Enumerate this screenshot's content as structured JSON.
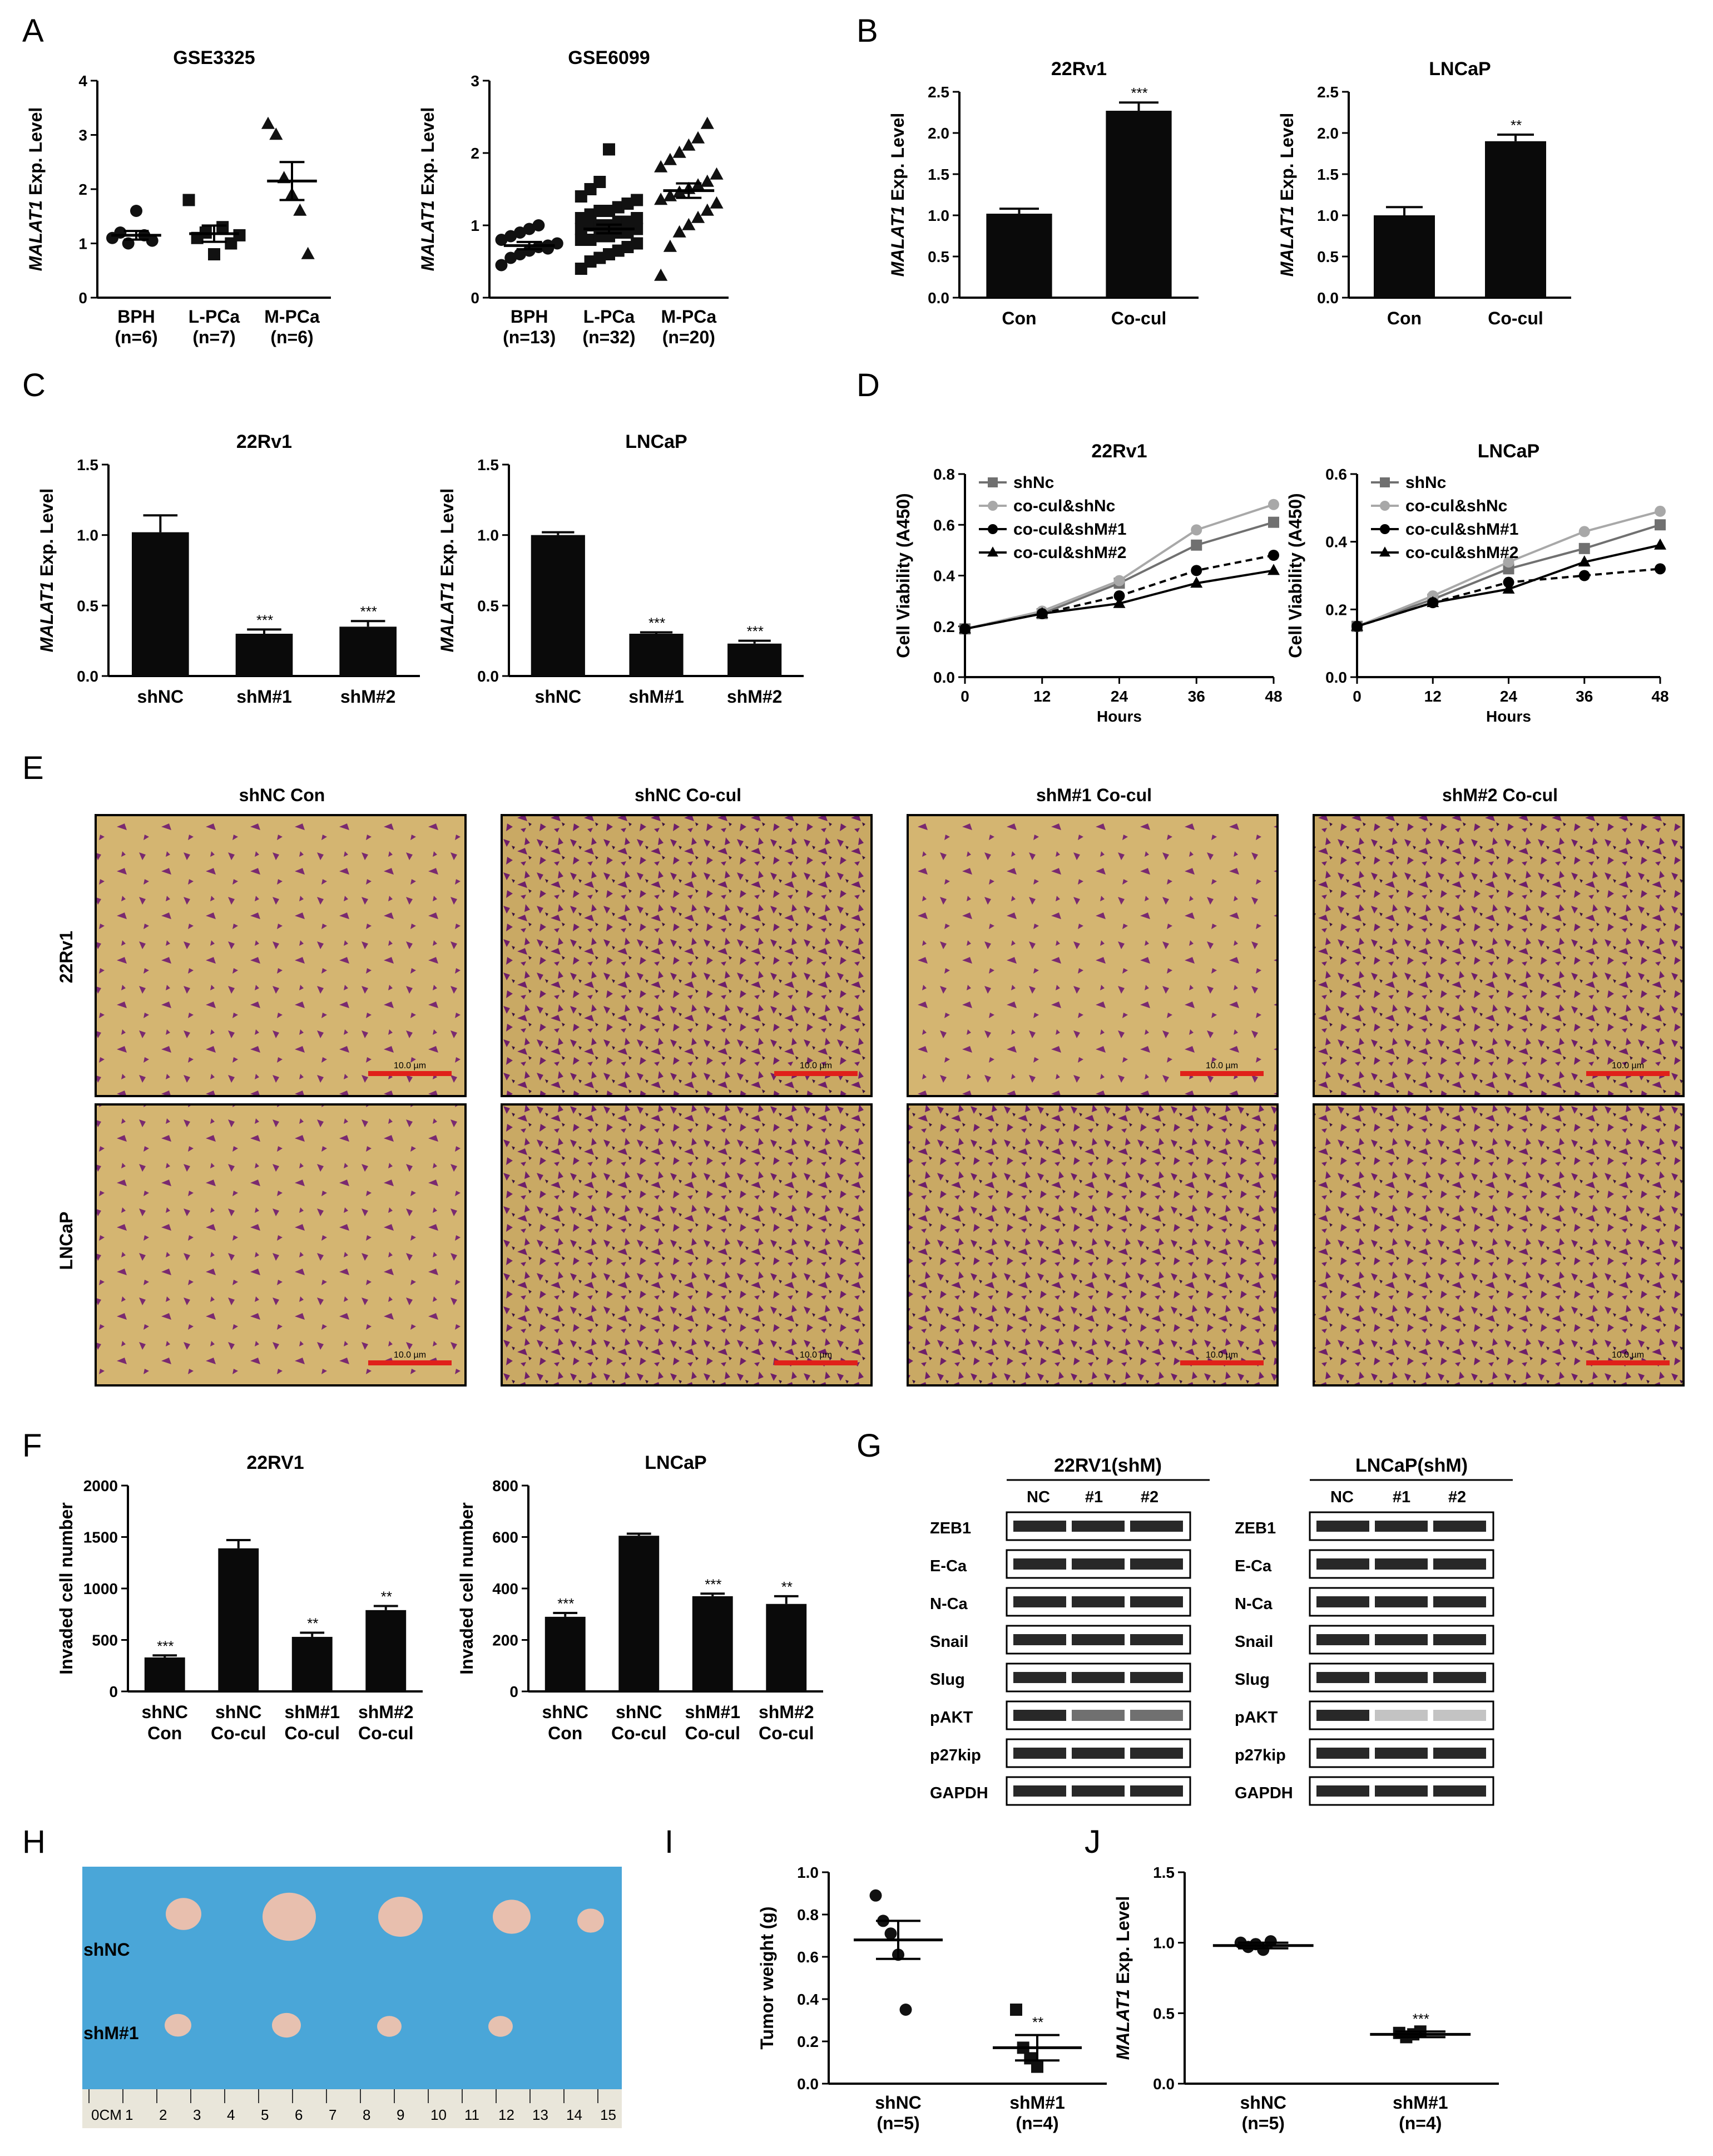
{
  "panel_letters": {
    "A": "A",
    "B": "B",
    "C": "C",
    "D": "D",
    "E": "E",
    "F": "F",
    "G": "G",
    "H": "H",
    "I": "I",
    "J": "J"
  },
  "ylabels": {
    "malat1": "MALAT1",
    "exp_level": " Exp. Level",
    "viability": "Cell Viability (A450)",
    "invaded": "Invaded cell number",
    "tumor_weight": "Tumor weight (g)",
    "hours": "Hours"
  },
  "colors": {
    "bar": "#0a0a0a",
    "gray_dark": "#707070",
    "gray_light": "#a8a8a8",
    "scale_bar": "#e0201a",
    "micro_bg": "#cfb06b",
    "micro_stain": "#6e1f6a",
    "photo_bg": "#4aa6d8"
  },
  "chart_data": [
    {
      "id": "A1",
      "type": "scatter",
      "title": "GSE3325",
      "ylim": [
        0,
        4
      ],
      "yticks": [
        "0",
        "1",
        "2",
        "3",
        "4"
      ],
      "categories": [
        "BPH",
        "L-PCa",
        "M-PCa"
      ],
      "cat_n": [
        "(n=6)",
        "(n=7)",
        "(n=6)"
      ],
      "groups": [
        {
          "marker": "circle",
          "mean": 1.15,
          "sem": 0.08,
          "values": [
            1.1,
            1.2,
            1.0,
            1.6,
            1.15,
            1.05
          ]
        },
        {
          "marker": "square",
          "mean": 1.18,
          "sem": 0.15,
          "values": [
            1.8,
            1.1,
            1.2,
            0.8,
            1.3,
            1.0,
            1.15
          ]
        },
        {
          "marker": "triangle",
          "mean": 2.15,
          "sem": 0.35,
          "values": [
            3.2,
            3.0,
            2.2,
            1.9,
            1.6,
            0.8
          ]
        }
      ]
    },
    {
      "id": "A2",
      "type": "scatter",
      "title": "GSE6099",
      "ylim": [
        0,
        3
      ],
      "yticks": [
        "0",
        "1",
        "2",
        "3"
      ],
      "categories": [
        "BPH",
        "L-PCa",
        "M-PCa"
      ],
      "cat_n": [
        "(n=13)",
        "(n=32)",
        "(n=20)"
      ],
      "groups": [
        {
          "marker": "circle",
          "mean": 0.72,
          "sem": 0.05,
          "values": [
            0.45,
            0.55,
            0.6,
            0.65,
            0.7,
            0.72,
            0.75,
            0.8,
            0.85,
            0.9,
            0.95,
            1.0,
            0.68
          ]
        },
        {
          "marker": "square",
          "mean": 0.95,
          "sem": 0.06,
          "values": [
            0.4,
            0.5,
            0.55,
            0.6,
            0.65,
            0.7,
            0.75,
            0.8,
            0.8,
            0.85,
            0.85,
            0.9,
            0.9,
            0.95,
            0.95,
            1.0,
            1.0,
            1.0,
            1.05,
            1.05,
            1.1,
            1.1,
            1.15,
            1.2,
            1.2,
            1.25,
            1.3,
            1.35,
            1.4,
            1.5,
            1.6,
            2.05
          ]
        },
        {
          "marker": "triangle",
          "mean": 1.48,
          "sem": 0.1,
          "values": [
            0.3,
            0.7,
            0.9,
            1.0,
            1.1,
            1.2,
            1.3,
            1.35,
            1.4,
            1.45,
            1.5,
            1.55,
            1.6,
            1.7,
            1.8,
            1.9,
            2.0,
            2.1,
            2.2,
            2.4
          ]
        }
      ]
    },
    {
      "id": "B1",
      "type": "bar",
      "title": "22Rv1",
      "ylim": [
        0,
        2.5
      ],
      "yticks": [
        "0.0",
        "0.5",
        "1.0",
        "1.5",
        "2.0",
        "2.5"
      ],
      "categories": [
        "Con",
        "Co-cul"
      ],
      "values": [
        1.02,
        2.27
      ],
      "errors": [
        0.06,
        0.1
      ],
      "annotations": [
        "",
        "***"
      ]
    },
    {
      "id": "B2",
      "type": "bar",
      "title": "LNCaP",
      "ylim": [
        0,
        2.5
      ],
      "yticks": [
        "0.0",
        "0.5",
        "1.0",
        "1.5",
        "2.0",
        "2.5"
      ],
      "categories": [
        "Con",
        "Co-cul"
      ],
      "values": [
        1.0,
        1.9
      ],
      "errors": [
        0.1,
        0.08
      ],
      "annotations": [
        "",
        "**"
      ]
    },
    {
      "id": "C1",
      "type": "bar",
      "title": "22Rv1",
      "ylim": [
        0,
        1.5
      ],
      "yticks": [
        "0.0",
        "0.5",
        "1.0",
        "1.5"
      ],
      "categories": [
        "shNC",
        "shM#1",
        "shM#2"
      ],
      "values": [
        1.02,
        0.3,
        0.35
      ],
      "errors": [
        0.12,
        0.03,
        0.04
      ],
      "annotations": [
        "",
        "***",
        "***"
      ]
    },
    {
      "id": "C2",
      "type": "bar",
      "title": "LNCaP",
      "ylim": [
        0,
        1.5
      ],
      "yticks": [
        "0.0",
        "0.5",
        "1.0",
        "1.5"
      ],
      "categories": [
        "shNC",
        "shM#1",
        "shM#2"
      ],
      "values": [
        1.0,
        0.3,
        0.23
      ],
      "errors": [
        0.02,
        0.01,
        0.02
      ],
      "annotations": [
        "",
        "***",
        "***"
      ]
    },
    {
      "id": "D1",
      "type": "line",
      "title": "22Rv1",
      "xlabel": "Hours",
      "x": [
        0,
        12,
        24,
        36,
        48
      ],
      "ylim": [
        0,
        0.8
      ],
      "yticks": [
        "0.0",
        "0.2",
        "0.4",
        "0.6",
        "0.8"
      ],
      "series": [
        {
          "name": "shNc",
          "marker": "square",
          "style": "solid",
          "values": [
            0.19,
            0.25,
            0.37,
            0.52,
            0.61
          ]
        },
        {
          "name": "co-cul&shNc",
          "marker": "circle",
          "style": "solid",
          "values": [
            0.19,
            0.26,
            0.38,
            0.58,
            0.68
          ]
        },
        {
          "name": "co-cul&shM#1",
          "marker": "circle",
          "style": "dash",
          "values": [
            0.19,
            0.25,
            0.32,
            0.42,
            0.48
          ]
        },
        {
          "name": "co-cul&shM#2",
          "marker": "triangle",
          "style": "solid",
          "values": [
            0.19,
            0.25,
            0.29,
            0.37,
            0.42
          ]
        }
      ]
    },
    {
      "id": "D2",
      "type": "line",
      "title": "LNCaP",
      "xlabel": "Hours",
      "x": [
        0,
        12,
        24,
        36,
        48
      ],
      "ylim": [
        0,
        0.6
      ],
      "yticks": [
        "0.0",
        "0.2",
        "0.4",
        "0.6"
      ],
      "series": [
        {
          "name": "shNc",
          "marker": "square",
          "style": "solid",
          "values": [
            0.15,
            0.23,
            0.32,
            0.38,
            0.45
          ]
        },
        {
          "name": "co-cul&shNc",
          "marker": "circle",
          "style": "solid",
          "values": [
            0.15,
            0.24,
            0.34,
            0.43,
            0.49
          ]
        },
        {
          "name": "co-cul&shM#1",
          "marker": "circle",
          "style": "dash",
          "values": [
            0.15,
            0.22,
            0.28,
            0.3,
            0.32
          ]
        },
        {
          "name": "co-cul&shM#2",
          "marker": "triangle",
          "style": "solid",
          "values": [
            0.15,
            0.22,
            0.26,
            0.34,
            0.39
          ]
        }
      ]
    },
    {
      "id": "F1",
      "type": "bar",
      "title": "22RV1",
      "ylim": [
        0,
        2000
      ],
      "yticks": [
        "0",
        "500",
        "1000",
        "1500",
        "2000"
      ],
      "categories": [
        "shNC\nCon",
        "shNC\nCo-cul",
        "shM#1\nCo-cul",
        "shM#2\nCo-cul"
      ],
      "values": [
        330,
        1390,
        530,
        790
      ],
      "errors": [
        20,
        80,
        40,
        40
      ],
      "annotations": [
        "***",
        "",
        "**",
        "**"
      ]
    },
    {
      "id": "F2",
      "type": "bar",
      "title": "LNCaP",
      "ylim": [
        0,
        800
      ],
      "yticks": [
        "0",
        "200",
        "400",
        "600",
        "800"
      ],
      "categories": [
        "shNC\nCon",
        "shNC\nCo-cul",
        "shM#1\nCo-cul",
        "shM#2\nCo-cul"
      ],
      "values": [
        290,
        605,
        370,
        340
      ],
      "errors": [
        15,
        8,
        10,
        30
      ],
      "annotations": [
        "***",
        "",
        "***",
        "**"
      ]
    },
    {
      "id": "I",
      "type": "scatter",
      "title": "",
      "ylabel": "Tumor weight (g)",
      "ylim": [
        0,
        1.0
      ],
      "yticks": [
        "0.0",
        "0.2",
        "0.4",
        "0.6",
        "0.8",
        "1.0"
      ],
      "categories": [
        "shNC",
        "shM#1"
      ],
      "cat_n": [
        "(n=5)",
        "(n=4)"
      ],
      "groups": [
        {
          "marker": "circle",
          "mean": 0.68,
          "sem": 0.09,
          "values": [
            0.89,
            0.77,
            0.71,
            0.61,
            0.35
          ],
          "annotation": ""
        },
        {
          "marker": "square",
          "mean": 0.17,
          "sem": 0.06,
          "values": [
            0.35,
            0.17,
            0.12,
            0.08
          ],
          "annotation": "**"
        }
      ]
    },
    {
      "id": "J",
      "type": "scatter",
      "title": "",
      "ylim": [
        0,
        1.5
      ],
      "yticks": [
        "0.0",
        "0.5",
        "1.0",
        "1.5"
      ],
      "categories": [
        "shNC",
        "shM#1"
      ],
      "cat_n": [
        "(n=5)",
        "(n=4)"
      ],
      "groups": [
        {
          "marker": "circle",
          "mean": 0.98,
          "sem": 0.02,
          "values": [
            1.0,
            0.97,
            0.99,
            0.95,
            1.01
          ],
          "annotation": ""
        },
        {
          "marker": "square",
          "mean": 0.35,
          "sem": 0.02,
          "values": [
            0.36,
            0.33,
            0.35,
            0.37
          ],
          "annotation": "***"
        }
      ]
    }
  ],
  "panel_E": {
    "columns": [
      "shNC Con",
      "shNC Co-cul",
      "shM#1 Co-cul",
      "shM#2 Co-cul"
    ],
    "rows": [
      "22Rv1",
      "LNCaP"
    ],
    "scale_label": "10.0 µm",
    "stain_density": [
      [
        0.35,
        0.75,
        0.55,
        0.6
      ],
      [
        0.3,
        0.7,
        0.7,
        0.65
      ]
    ]
  },
  "panel_G": {
    "blots": [
      {
        "title": "22RV1(shM)",
        "lanes": [
          "NC",
          "#1",
          "#2"
        ]
      },
      {
        "title": "LNCaP(shM)",
        "lanes": [
          "NC",
          "#1",
          "#2"
        ]
      }
    ],
    "proteins": [
      "ZEB1",
      "E-Ca",
      "N-Ca",
      "Snail",
      "Slug",
      "pAKT",
      "p27kip",
      "GAPDH"
    ]
  },
  "panel_H": {
    "rows": [
      "shNC",
      "shM#1"
    ],
    "ruler": [
      "0CM",
      "1",
      "2",
      "3",
      "4",
      "5",
      "6",
      "7",
      "8",
      "9",
      "10",
      "11",
      "12",
      "13",
      "14",
      "15"
    ]
  }
}
